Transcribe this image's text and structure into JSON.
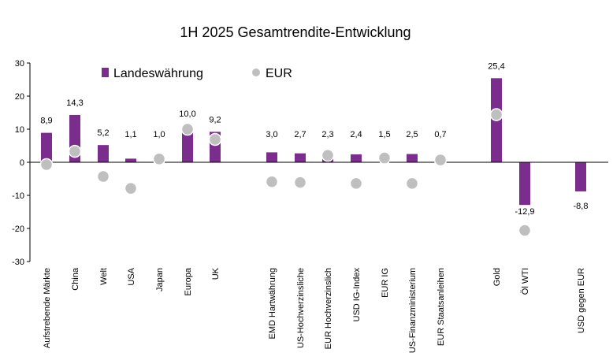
{
  "chart_data": {
    "type": "bar",
    "title": "1H 2025 Gesamtrendite-Entwicklung",
    "xlabel": "",
    "ylabel": "",
    "ylim": [
      -30,
      30
    ],
    "yticks": [
      -30,
      -20,
      -10,
      0,
      10,
      20,
      30
    ],
    "grid": false,
    "legend_placement": "top-left",
    "colors": {
      "bar": "#7B2D8E",
      "dot": "#BFBFBF",
      "dot_stroke": "#FFFFFF",
      "axis": "#000000"
    },
    "categories": [
      "Aufstrebende Märkte",
      "China",
      "Welt",
      "USA",
      "Japan",
      "Europa",
      "UK",
      "EMD Hartwährung",
      "US-Hochverzinsliche",
      "EUR Hochverzinslich",
      "USD IG-Index",
      "EUR IG",
      "US-Finanzministerium",
      "EUR Staatsanleihen",
      "Gold",
      "Öl WTI",
      "USD gegen EUR"
    ],
    "series": [
      {
        "name": "Landeswährung",
        "kind": "bar",
        "values": [
          8.9,
          14.3,
          5.2,
          1.1,
          1.0,
          10.0,
          9.2,
          3.0,
          2.7,
          2.3,
          2.4,
          1.5,
          2.5,
          0.7,
          25.4,
          -12.9,
          -8.8
        ],
        "labels": [
          "8,9",
          "14,3",
          "5,2",
          "1,1",
          "1,0",
          "10,0",
          "9,2",
          "3,0",
          "2,7",
          "2,3",
          "2,4",
          "1,5",
          "2,5",
          "0,7",
          "25,4",
          "-12,9",
          "-8,8"
        ]
      },
      {
        "name": "EUR",
        "kind": "dot",
        "values": [
          -0.7,
          3.3,
          -4.3,
          -7.9,
          1.0,
          10.0,
          6.9,
          -5.9,
          -6.1,
          2.1,
          -6.4,
          1.3,
          -6.4,
          0.7,
          14.4,
          -20.6,
          null
        ]
      }
    ]
  }
}
